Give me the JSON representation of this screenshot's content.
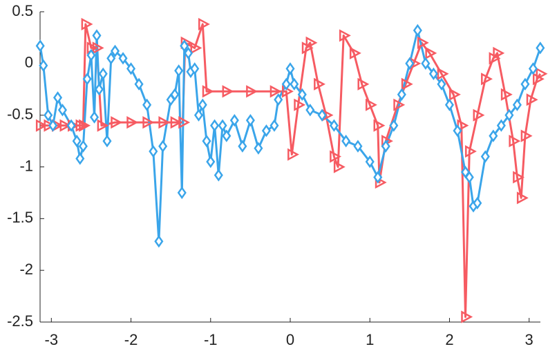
{
  "chart_data": {
    "type": "line",
    "xlim": [
      -3.1416,
      3.1416
    ],
    "ylim": [
      -2.5,
      0.5
    ],
    "xticks": [
      -3,
      -2,
      -1,
      0,
      1,
      2,
      3
    ],
    "yticks": [
      0.5,
      0,
      -0.5,
      -1,
      -1.5,
      -2,
      -2.5
    ],
    "series": [
      {
        "color": "#f65b62",
        "marker": "triangle-right",
        "x": [
          -3.14,
          -3.04,
          -2.94,
          -2.84,
          -2.74,
          -2.64,
          -2.6,
          -2.57,
          -2.5,
          -2.43,
          -2.37,
          -2.2,
          -2.0,
          -1.8,
          -1.6,
          -1.45,
          -1.35,
          -1.32,
          -1.2,
          -1.1,
          -1.05,
          -0.8,
          -0.5,
          -0.2,
          -0.05,
          0.02,
          0.1,
          0.2,
          0.25,
          0.35,
          0.45,
          0.55,
          0.6,
          0.67,
          0.8,
          0.9,
          1.0,
          1.1,
          1.12,
          1.2,
          1.35,
          1.45,
          1.55,
          1.65,
          1.75,
          1.9,
          2.05,
          2.15,
          2.2,
          2.25,
          2.35,
          2.45,
          2.55,
          2.6,
          2.7,
          2.8,
          2.85,
          2.9,
          2.95,
          3.02,
          3.1,
          3.14
        ],
        "values": [
          -0.6,
          -0.6,
          -0.6,
          -0.6,
          -0.6,
          -0.6,
          -0.6,
          0.38,
          0.15,
          0.15,
          -0.6,
          -0.57,
          -0.57,
          -0.57,
          -0.57,
          -0.57,
          -0.57,
          0.2,
          0.15,
          0.38,
          -0.27,
          -0.27,
          -0.27,
          -0.27,
          -0.27,
          -0.88,
          -0.4,
          0.15,
          0.2,
          -0.2,
          -0.5,
          -0.9,
          -1.0,
          0.27,
          0.1,
          -0.2,
          -0.4,
          -0.6,
          -1.15,
          -0.75,
          -0.4,
          -0.2,
          0.0,
          0.2,
          0.1,
          -0.1,
          -0.3,
          -0.6,
          -2.45,
          -0.85,
          -0.5,
          -0.15,
          0.05,
          0.1,
          -0.3,
          -0.75,
          -1.1,
          -1.3,
          -0.7,
          -0.35,
          -0.15,
          -0.1
        ]
      },
      {
        "color": "#3aa5ea",
        "marker": "diamond",
        "x": [
          -3.14,
          -3.1,
          -3.04,
          -2.98,
          -2.92,
          -2.86,
          -2.75,
          -2.68,
          -2.64,
          -2.6,
          -2.55,
          -2.5,
          -2.46,
          -2.43,
          -2.4,
          -2.35,
          -2.3,
          -2.25,
          -2.2,
          -2.1,
          -2.0,
          -1.9,
          -1.8,
          -1.72,
          -1.65,
          -1.6,
          -1.5,
          -1.45,
          -1.4,
          -1.36,
          -1.33,
          -1.28,
          -1.25,
          -1.2,
          -1.15,
          -1.1,
          -1.05,
          -1.0,
          -0.95,
          -0.9,
          -0.85,
          -0.8,
          -0.7,
          -0.6,
          -0.5,
          -0.4,
          -0.3,
          -0.2,
          -0.15,
          -0.05,
          0.0,
          0.05,
          0.15,
          0.25,
          0.4,
          0.55,
          0.7,
          0.85,
          1.0,
          1.1,
          1.2,
          1.3,
          1.4,
          1.5,
          1.6,
          1.7,
          1.8,
          1.9,
          2.0,
          2.1,
          2.2,
          2.25,
          2.3,
          2.35,
          2.45,
          2.55,
          2.65,
          2.75,
          2.85,
          2.95,
          3.05,
          3.14
        ],
        "values": [
          0.17,
          -0.02,
          -0.5,
          -0.6,
          -0.33,
          -0.45,
          -0.6,
          -0.75,
          -0.92,
          -0.8,
          -0.15,
          0.08,
          -0.52,
          0.27,
          -0.25,
          -0.1,
          -0.75,
          0.05,
          0.12,
          0.05,
          -0.05,
          -0.2,
          -0.4,
          -0.85,
          -1.72,
          -0.8,
          -0.35,
          -0.3,
          -0.07,
          -1.25,
          0.17,
          0.1,
          -0.08,
          -0.05,
          -0.5,
          -0.4,
          -0.75,
          -0.95,
          -0.6,
          -1.08,
          -0.6,
          -0.7,
          -0.55,
          -0.8,
          -0.55,
          -0.82,
          -0.65,
          -0.6,
          -0.35,
          -0.2,
          -0.05,
          -0.2,
          -0.3,
          -0.45,
          -0.5,
          -0.6,
          -0.75,
          -0.8,
          -0.95,
          -1.1,
          -0.8,
          -0.6,
          -0.3,
          0.0,
          0.32,
          0.0,
          -0.1,
          -0.2,
          -0.4,
          -0.65,
          -1.05,
          -1.1,
          -1.38,
          -1.35,
          -0.9,
          -0.7,
          -0.6,
          -0.5,
          -0.4,
          -0.2,
          -0.05,
          0.15
        ]
      }
    ]
  }
}
